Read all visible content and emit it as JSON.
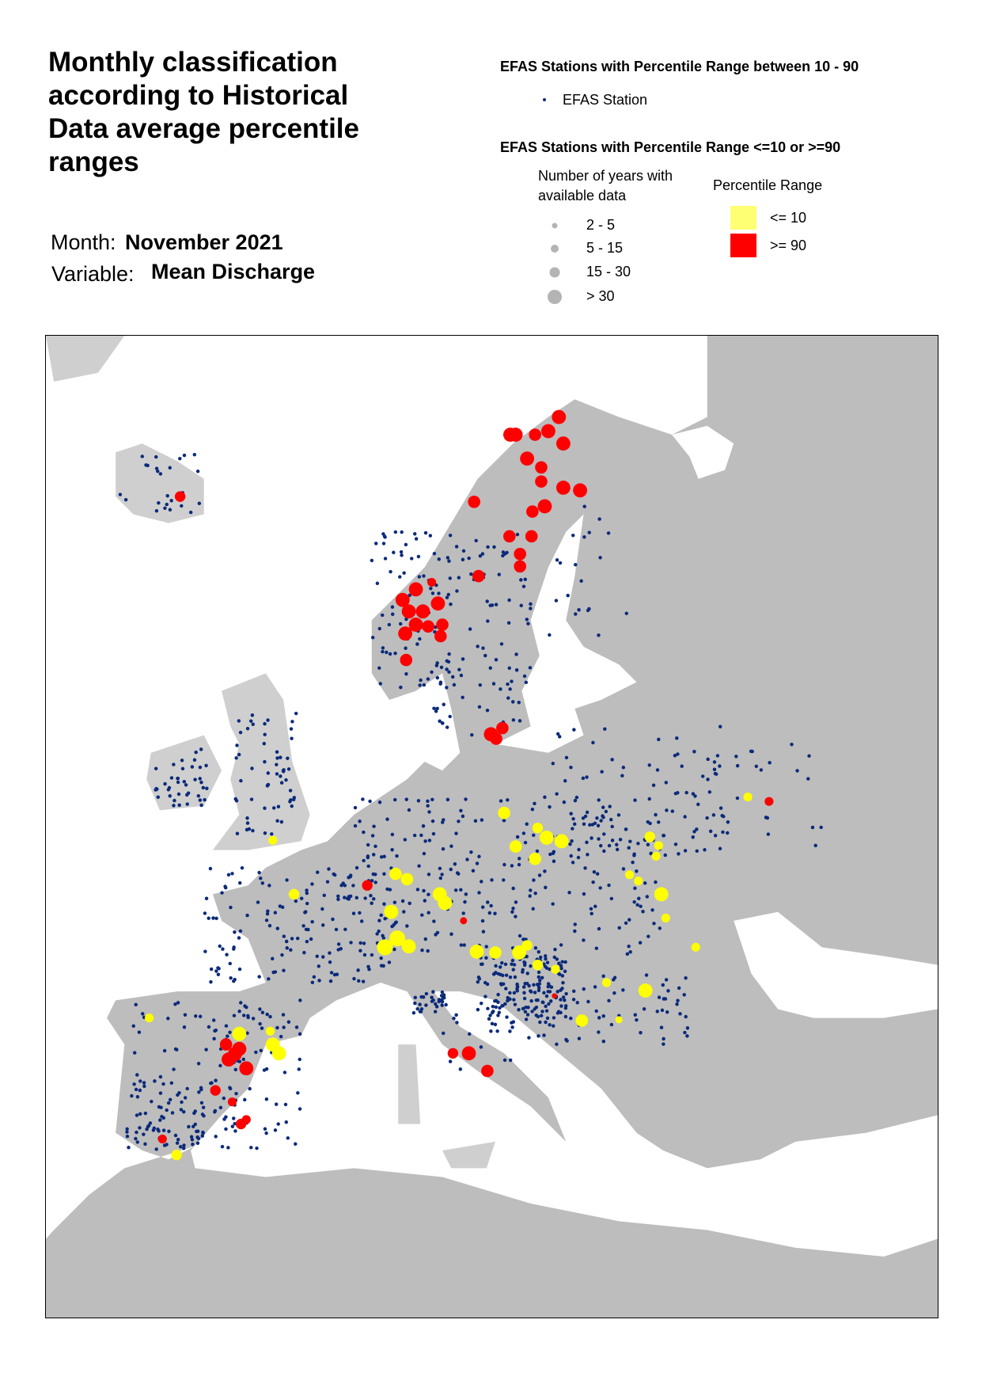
{
  "header": {
    "title": "Monthly classification according to Historical Data average percentile ranges",
    "month_label": "Month:",
    "month": "November 2021",
    "variable_label": "Variable:",
    "variable": "Mean Discharge"
  },
  "legend": {
    "normal_heading": "EFAS Stations with Percentile Range between 10 - 90",
    "station": "EFAS Station",
    "station_color": "#0b2a7a",
    "extreme_heading": "EFAS Stations with Percentile Range <=10 or >=90",
    "years_heading": "Number of years with available data",
    "years": [
      "2 - 5",
      "5 - 15",
      "15 - 30",
      "> 30"
    ],
    "range_heading": "Percentile Range",
    "ranges": [
      {
        "label": "<= 10",
        "color": "#ffff00"
      },
      {
        "label": ">= 90",
        "color": "#ff0000"
      }
    ]
  }
}
